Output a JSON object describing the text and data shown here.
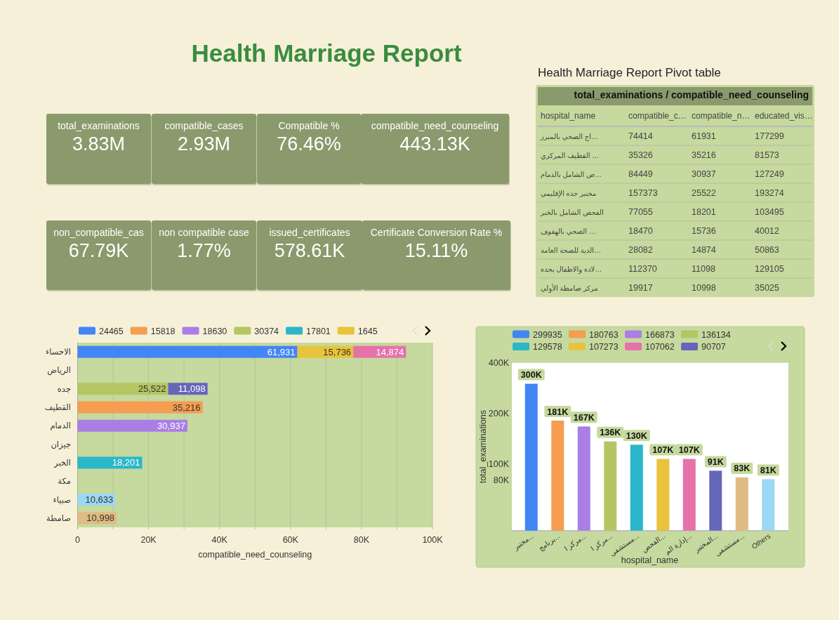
{
  "chart_data": [
    {
      "type": "other",
      "title": "Health Marriage Report",
      "categories": [
        "total_examinations",
        "compatible_cases",
        "Compatible %",
        "compatible_need_counseling",
        "non_compatible_cas",
        "non compatible case",
        "issued_certificates",
        "Certificate Conversion Rate %"
      ],
      "value_labels": [
        "3.83M",
        "2.93M",
        "76.46%",
        "443.13K",
        "67.79K",
        "1.77%",
        "578.61K",
        "15.11%"
      ]
    },
    {
      "type": "other",
      "title": "Health Marriage Report Pivot table",
      "subtitle": "total_examinations / compatible_need_counseling",
      "ylabel": "hospital_name",
      "categories": [
        "اج الصحي بالمبرز…",
        "القطيف المركزي …",
        "ص الشامل بالدمام…",
        "مختبر جده الإقليمي",
        "الفحص الشامل بالخبر",
        "الصحي بالهفوف …",
        "الدية للصحة العامة…",
        "لاده والاطفال بجده…",
        "مركز صامطة الأولي"
      ],
      "series": [
        {
          "name": "compatible_c…",
          "values": [
            74414,
            35326,
            84449,
            157373,
            77055,
            18470,
            28082,
            112370,
            19917
          ]
        },
        {
          "name": "compatible_n…",
          "values": [
            61931,
            35216,
            30937,
            25522,
            18201,
            15736,
            14874,
            11098,
            10998
          ]
        },
        {
          "name": "educated_vis…",
          "values": [
            177299,
            81573,
            127249,
            193274,
            103495,
            40012,
            50863,
            129105,
            35025
          ]
        }
      ],
      "data_labels": true
    },
    {
      "type": "bar",
      "orientation": "horizontal",
      "stacked": true,
      "categories": [
        "الاحساء",
        "الرياض",
        "جده",
        "القطيف",
        "الدمام",
        "جيزان",
        "الخبر",
        "مكة",
        "صبياء",
        "صامطة"
      ],
      "series": [
        {
          "name": "24465",
          "color": "#4285f4",
          "values": [
            61931,
            null,
            null,
            null,
            null,
            null,
            null,
            null,
            null,
            null
          ],
          "value_labels": [
            "61,931",
            null,
            null,
            null,
            null,
            null,
            null,
            null,
            null,
            null
          ]
        },
        {
          "name": "15818",
          "color": "#f59d50",
          "values": [
            null,
            null,
            null,
            35216,
            null,
            null,
            null,
            null,
            null,
            null
          ],
          "value_labels": [
            null,
            null,
            null,
            "35,216",
            null,
            null,
            null,
            null,
            null,
            null
          ]
        },
        {
          "name": "18630",
          "color": "#ab7ee6",
          "values": [
            null,
            null,
            null,
            null,
            30937,
            null,
            null,
            null,
            null,
            null
          ],
          "value_labels": [
            null,
            null,
            null,
            null,
            "30,937",
            null,
            null,
            null,
            null,
            null
          ]
        },
        {
          "name": "30374",
          "color": "#b4c663",
          "values": [
            null,
            null,
            25522,
            null,
            null,
            null,
            null,
            null,
            null,
            null
          ],
          "value_labels": [
            null,
            null,
            "25,522",
            null,
            null,
            null,
            null,
            null,
            null,
            null
          ]
        },
        {
          "name": "17801",
          "color": "#2ab7ca",
          "values": [
            null,
            null,
            null,
            null,
            null,
            null,
            18201,
            null,
            null,
            null
          ],
          "value_labels": [
            null,
            null,
            null,
            null,
            null,
            null,
            "18,201",
            null,
            null,
            null
          ]
        },
        {
          "name": "1645",
          "color": "#e8c33b",
          "values": [
            15736,
            null,
            null,
            null,
            null,
            null,
            null,
            null,
            null,
            null
          ],
          "value_labels": [
            "15,736",
            null,
            null,
            null,
            null,
            null,
            null,
            null,
            null,
            null
          ]
        },
        {
          "color": "#e672aa",
          "values": [
            14874,
            null,
            null,
            null,
            null,
            null,
            null,
            null,
            null,
            null
          ],
          "value_labels": [
            "14,874",
            null,
            null,
            null,
            null,
            null,
            null,
            null,
            null,
            null
          ]
        },
        {
          "color": "#6566b9",
          "values": [
            null,
            null,
            11098,
            null,
            null,
            null,
            null,
            null,
            null,
            null
          ],
          "value_labels": [
            null,
            null,
            "11,098",
            null,
            null,
            null,
            null,
            null,
            null,
            null
          ]
        },
        {
          "color": "#9bd8f3",
          "values": [
            null,
            null,
            null,
            null,
            null,
            null,
            null,
            null,
            10633,
            null
          ],
          "value_labels": [
            null,
            null,
            null,
            null,
            null,
            null,
            null,
            null,
            "10,633",
            null
          ]
        },
        {
          "color": "#e0bb82",
          "values": [
            null,
            null,
            null,
            null,
            null,
            null,
            null,
            null,
            null,
            10998
          ],
          "value_labels": [
            null,
            null,
            null,
            null,
            null,
            null,
            null,
            null,
            null,
            "10,998"
          ]
        }
      ],
      "xlim": [
        0,
        100000
      ],
      "xticks": [
        0,
        {
          "value": 10000,
          "label": null
        },
        {
          "value": 20000,
          "label": "20K"
        },
        {
          "value": 30000,
          "label": null
        },
        {
          "value": 40000,
          "label": "40K"
        },
        {
          "value": 50000,
          "label": null
        },
        {
          "value": 60000,
          "label": "60K"
        },
        {
          "value": 70000,
          "label": null
        },
        {
          "value": 80000,
          "label": "80K"
        },
        {
          "value": 90000,
          "label": null
        },
        {
          "value": 100000,
          "label": "100K"
        }
      ],
      "xlabel": "compatible_need_counseling",
      "grid": "x",
      "legend": "top"
    },
    {
      "type": "bar",
      "stacked": true,
      "log": true,
      "categories": [
        "مختبر...",
        "برنامج...",
        "مركز ا...",
        "مركز ا...",
        "مستشفى...",
        "الفحص...",
        "إدارة الم...",
        "المختبر...",
        "مستشفى...",
        "Others"
      ],
      "series": [
        {
          "name": "299935",
          "color": "#4285f4",
          "values": [
            300000,
            null,
            null,
            null,
            null,
            null,
            null,
            null,
            null,
            null
          ],
          "value_labels": [
            "300K",
            null,
            null,
            null,
            null,
            null,
            null,
            null,
            null,
            null
          ]
        },
        {
          "name": "180763",
          "color": "#f59d50",
          "values": [
            null,
            181000,
            null,
            null,
            null,
            null,
            null,
            null,
            null,
            null
          ],
          "value_labels": [
            null,
            "181K",
            null,
            null,
            null,
            null,
            null,
            null,
            null,
            null
          ]
        },
        {
          "name": "166873",
          "color": "#ab7ee6",
          "values": [
            null,
            null,
            167000,
            null,
            null,
            null,
            null,
            null,
            null,
            null
          ],
          "value_labels": [
            null,
            null,
            "167K",
            null,
            null,
            null,
            null,
            null,
            null,
            null
          ]
        },
        {
          "name": "136134",
          "color": "#b4c663",
          "values": [
            null,
            null,
            null,
            136000,
            null,
            null,
            null,
            null,
            null,
            null
          ],
          "value_labels": [
            null,
            null,
            null,
            "136K",
            null,
            null,
            null,
            null,
            null,
            null
          ]
        },
        {
          "name": "129578",
          "color": "#2ab7ca",
          "values": [
            null,
            null,
            null,
            null,
            130000,
            null,
            null,
            null,
            null,
            null
          ],
          "value_labels": [
            null,
            null,
            null,
            null,
            "130K",
            null,
            null,
            null,
            null,
            null
          ]
        },
        {
          "name": "107273",
          "color": "#e8c33b",
          "values": [
            null,
            null,
            null,
            null,
            null,
            107000,
            null,
            null,
            null,
            null
          ],
          "value_labels": [
            null,
            null,
            null,
            null,
            null,
            "107K",
            null,
            null,
            null,
            null
          ]
        },
        {
          "name": "107062",
          "color": "#e672aa",
          "values": [
            null,
            null,
            null,
            null,
            null,
            null,
            107000,
            null,
            null,
            null
          ],
          "value_labels": [
            null,
            null,
            null,
            null,
            null,
            null,
            "107K",
            null,
            null,
            null
          ]
        },
        {
          "name": "90707",
          "color": "#6566b9",
          "values": [
            null,
            null,
            null,
            null,
            null,
            null,
            null,
            91000,
            null,
            null
          ],
          "value_labels": [
            null,
            null,
            null,
            null,
            null,
            null,
            null,
            "91K",
            null,
            null
          ]
        },
        {
          "color": "#e0bb82",
          "values": [
            null,
            null,
            null,
            null,
            null,
            null,
            null,
            null,
            83000,
            null
          ],
          "value_labels": [
            null,
            null,
            null,
            null,
            null,
            null,
            null,
            null,
            "83K",
            null
          ]
        },
        {
          "color": "#9bd8f3",
          "values": [
            null,
            null,
            null,
            null,
            null,
            null,
            null,
            null,
            null,
            81000
          ],
          "value_labels": [
            null,
            null,
            null,
            null,
            null,
            null,
            null,
            null,
            null,
            "81K"
          ]
        }
      ],
      "ylim": [
        40000,
        400000
      ],
      "yticks": [
        {
          "value": 80000,
          "label": "80K"
        },
        {
          "value": 100000,
          "label": "100K"
        },
        {
          "value": 200000,
          "label": "200K"
        },
        {
          "value": 400000,
          "label": "400K"
        }
      ],
      "xlabel": "hospital_name",
      "ylabel": "total_examinations",
      "legend": "top"
    }
  ]
}
